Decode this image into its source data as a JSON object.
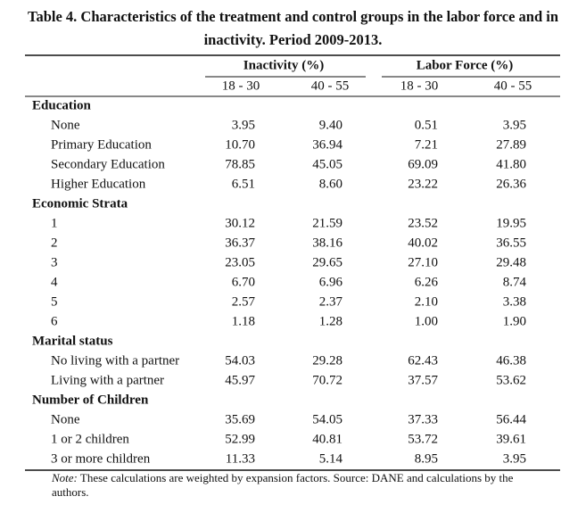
{
  "header": {
    "title": "Table 4. Characteristics of the treatment and control groups in the labor force and in inactivity. Period 2009-2013."
  },
  "table": {
    "groups": [
      "Inactivity (%)",
      "Labor Force (%)"
    ],
    "subheaders": [
      "18 - 30",
      "40 - 55",
      "18 - 30",
      "40 - 55"
    ],
    "sections": [
      {
        "title": "Education",
        "rows": [
          {
            "label": "None",
            "values": [
              "3.95",
              "9.40",
              "0.51",
              "3.95"
            ]
          },
          {
            "label": "Primary Education",
            "values": [
              "10.70",
              "36.94",
              "7.21",
              "27.89"
            ]
          },
          {
            "label": "Secondary Education",
            "values": [
              "78.85",
              "45.05",
              "69.09",
              "41.80"
            ]
          },
          {
            "label": "Higher Education",
            "values": [
              "6.51",
              "8.60",
              "23.22",
              "26.36"
            ]
          }
        ]
      },
      {
        "title": "Economic Strata",
        "rows": [
          {
            "label": "1",
            "values": [
              "30.12",
              "21.59",
              "23.52",
              "19.95"
            ]
          },
          {
            "label": "2",
            "values": [
              "36.37",
              "38.16",
              "40.02",
              "36.55"
            ]
          },
          {
            "label": "3",
            "values": [
              "23.05",
              "29.65",
              "27.10",
              "29.48"
            ]
          },
          {
            "label": "4",
            "values": [
              "6.70",
              "6.96",
              "6.26",
              "8.74"
            ]
          },
          {
            "label": "5",
            "values": [
              "2.57",
              "2.37",
              "2.10",
              "3.38"
            ]
          },
          {
            "label": "6",
            "values": [
              "1.18",
              "1.28",
              "1.00",
              "1.90"
            ]
          }
        ]
      },
      {
        "title": "Marital status",
        "rows": [
          {
            "label": "No living with a partner",
            "values": [
              "54.03",
              "29.28",
              "62.43",
              "46.38"
            ]
          },
          {
            "label": "Living with a partner",
            "values": [
              "45.97",
              "70.72",
              "37.57",
              "53.62"
            ]
          }
        ]
      },
      {
        "title": "Number of Children",
        "rows": [
          {
            "label": "None",
            "values": [
              "35.69",
              "54.05",
              "37.33",
              "56.44"
            ]
          },
          {
            "label": "1 or 2 children",
            "values": [
              "52.99",
              "40.81",
              "53.72",
              "39.61"
            ]
          },
          {
            "label": "3 or more children",
            "values": [
              "11.33",
              "5.14",
              "8.95",
              "3.95"
            ]
          }
        ]
      }
    ]
  },
  "note": {
    "lead": "Note:",
    "text": "These calculations are weighted by expansion factors. Source: DANE and calculations by the authors."
  }
}
